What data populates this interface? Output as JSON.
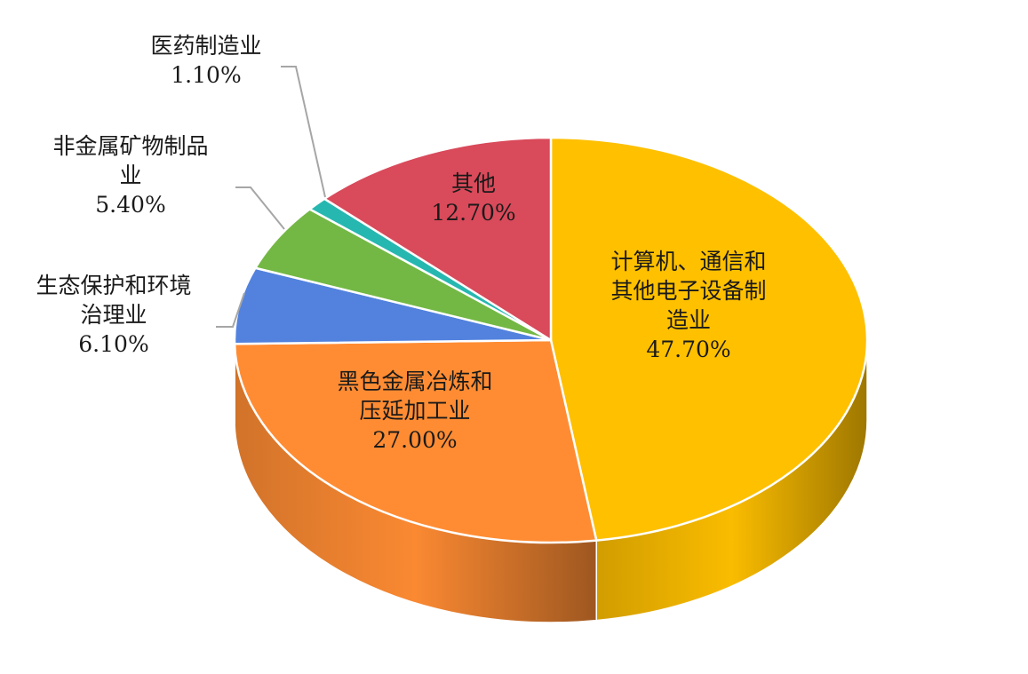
{
  "chart_data": {
    "type": "pie",
    "variant": "3d",
    "title": "",
    "start_angle_deg": 0,
    "direction": "clockwise",
    "slices": [
      {
        "name": "计算机、通信和其他电子设备制造业",
        "label_lines": [
          "计算机、通信和",
          "其他电子设备制",
          "造业"
        ],
        "value": 47.7,
        "value_label": "47.70%",
        "color": "#ffc000",
        "label_position": "inside"
      },
      {
        "name": "黑色金属冶炼和压延加工业",
        "label_lines": [
          "黑色金属冶炼和",
          "压延加工业"
        ],
        "value": 27.0,
        "value_label": "27.00%",
        "color": "#ff8c33",
        "label_position": "inside"
      },
      {
        "name": "生态保护和环境治理业",
        "label_lines": [
          "生态保护和环境",
          "治理业"
        ],
        "value": 6.1,
        "value_label": "6.10%",
        "color": "#5282de",
        "label_position": "outside"
      },
      {
        "name": "非金属矿物制品业",
        "label_lines": [
          "非金属矿物制品",
          "业"
        ],
        "value": 5.4,
        "value_label": "5.40%",
        "color": "#73b844",
        "label_position": "outside"
      },
      {
        "name": "医药制造业",
        "label_lines": [
          "医药制造业"
        ],
        "value": 1.1,
        "value_label": "1.10%",
        "color": "#26b8b0",
        "label_position": "outside"
      },
      {
        "name": "其他",
        "label_lines": [
          "其他"
        ],
        "value": 12.7,
        "value_label": "12.70%",
        "color": "#d94a5a",
        "label_position": "inside"
      }
    ]
  }
}
